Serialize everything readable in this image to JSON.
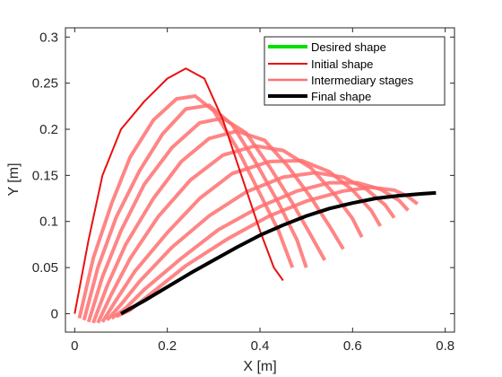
{
  "chart_data": {
    "type": "line",
    "xlabel": "X [m]",
    "ylabel": "Y [m]",
    "xlim": [
      -0.02,
      0.82
    ],
    "ylim": [
      -0.02,
      0.31
    ],
    "xticks": [
      0,
      0.2,
      0.4,
      0.6,
      0.8
    ],
    "xtick_labels": [
      "0",
      "0.2",
      "0.4",
      "0.6",
      "0.8"
    ],
    "yticks": [
      0,
      0.05,
      0.1,
      0.15,
      0.2,
      0.25,
      0.3
    ],
    "ytick_labels": [
      "0",
      "0.05",
      "0.1",
      "0.15",
      "0.2",
      "0.25",
      "0.3"
    ],
    "grid": false,
    "legend_position": "top-right",
    "legend": [
      "Desired shape",
      "Initial shape",
      "Intermediary stages",
      "Final shape"
    ],
    "colors": {
      "desired": "#00e000",
      "initial": "#e81010",
      "intermediate": "#ff7070",
      "final": "#000000",
      "axis": "#262626"
    },
    "series": [
      {
        "name": "Desired shape",
        "role": "desired",
        "x": [
          0.1,
          0.15,
          0.2,
          0.25,
          0.3,
          0.35,
          0.4,
          0.45,
          0.5,
          0.55,
          0.6,
          0.65,
          0.7,
          0.75,
          0.78
        ],
        "y": [
          0.0,
          0.014,
          0.029,
          0.044,
          0.058,
          0.072,
          0.085,
          0.096,
          0.106,
          0.114,
          0.12,
          0.125,
          0.128,
          0.13,
          0.131
        ]
      },
      {
        "name": "Initial shape",
        "role": "initial",
        "x": [
          0.0,
          0.03,
          0.06,
          0.1,
          0.15,
          0.2,
          0.24,
          0.28,
          0.32,
          0.36,
          0.4,
          0.43,
          0.45
        ],
        "y": [
          0.0,
          0.08,
          0.15,
          0.2,
          0.23,
          0.255,
          0.266,
          0.255,
          0.21,
          0.15,
          0.09,
          0.05,
          0.036
        ]
      },
      {
        "name": "Intermediary stages",
        "role": "intermediate",
        "x": [
          0.01,
          0.04,
          0.08,
          0.12,
          0.17,
          0.22,
          0.26,
          0.3,
          0.35,
          0.4,
          0.44,
          0.47
        ],
        "y": [
          -0.005,
          0.06,
          0.12,
          0.17,
          0.21,
          0.233,
          0.236,
          0.22,
          0.18,
          0.13,
          0.09,
          0.05
        ]
      },
      {
        "name": "Intermediary stages",
        "role": "intermediate",
        "x": [
          0.02,
          0.05,
          0.09,
          0.14,
          0.19,
          0.24,
          0.29,
          0.34,
          0.39,
          0.44,
          0.48,
          0.5
        ],
        "y": [
          -0.007,
          0.05,
          0.105,
          0.155,
          0.195,
          0.222,
          0.226,
          0.205,
          0.165,
          0.12,
          0.08,
          0.05
        ]
      },
      {
        "name": "Intermediary stages",
        "role": "intermediate",
        "x": [
          0.03,
          0.06,
          0.1,
          0.15,
          0.21,
          0.27,
          0.32,
          0.37,
          0.42,
          0.47,
          0.51,
          0.54
        ],
        "y": [
          -0.009,
          0.04,
          0.09,
          0.14,
          0.18,
          0.207,
          0.212,
          0.196,
          0.16,
          0.12,
          0.085,
          0.058
        ]
      },
      {
        "name": "Intermediary stages",
        "role": "intermediate",
        "x": [
          0.04,
          0.07,
          0.11,
          0.17,
          0.23,
          0.29,
          0.35,
          0.41,
          0.46,
          0.51,
          0.55,
          0.58
        ],
        "y": [
          -0.01,
          0.03,
          0.075,
          0.125,
          0.165,
          0.19,
          0.198,
          0.188,
          0.16,
          0.126,
          0.095,
          0.07
        ]
      },
      {
        "name": "Intermediary stages",
        "role": "intermediate",
        "x": [
          0.05,
          0.08,
          0.12,
          0.18,
          0.25,
          0.32,
          0.39,
          0.45,
          0.51,
          0.56,
          0.6,
          0.62
        ],
        "y": [
          -0.01,
          0.022,
          0.06,
          0.105,
          0.145,
          0.172,
          0.182,
          0.177,
          0.158,
          0.13,
          0.103,
          0.083
        ]
      },
      {
        "name": "Intermediary stages",
        "role": "intermediate",
        "x": [
          0.06,
          0.09,
          0.13,
          0.2,
          0.27,
          0.34,
          0.42,
          0.49,
          0.55,
          0.6,
          0.64,
          0.66
        ],
        "y": [
          -0.009,
          0.015,
          0.046,
          0.088,
          0.125,
          0.152,
          0.165,
          0.166,
          0.154,
          0.134,
          0.112,
          0.095
        ]
      },
      {
        "name": "Intermediary stages",
        "role": "intermediate",
        "x": [
          0.07,
          0.1,
          0.14,
          0.21,
          0.29,
          0.37,
          0.45,
          0.52,
          0.58,
          0.63,
          0.67,
          0.69
        ],
        "y": [
          -0.007,
          0.01,
          0.035,
          0.072,
          0.106,
          0.132,
          0.148,
          0.153,
          0.148,
          0.135,
          0.118,
          0.104
        ]
      },
      {
        "name": "Intermediary stages",
        "role": "intermediate",
        "x": [
          0.08,
          0.11,
          0.15,
          0.23,
          0.31,
          0.4,
          0.48,
          0.55,
          0.61,
          0.66,
          0.7,
          0.72
        ],
        "y": [
          -0.005,
          0.006,
          0.026,
          0.06,
          0.091,
          0.116,
          0.133,
          0.142,
          0.142,
          0.135,
          0.123,
          0.112
        ]
      },
      {
        "name": "Intermediary stages",
        "role": "intermediate",
        "x": [
          0.09,
          0.12,
          0.16,
          0.24,
          0.33,
          0.42,
          0.5,
          0.58,
          0.64,
          0.69,
          0.72,
          0.74
        ],
        "y": [
          -0.003,
          0.004,
          0.02,
          0.052,
          0.081,
          0.106,
          0.122,
          0.133,
          0.137,
          0.134,
          0.127,
          0.119
        ]
      },
      {
        "name": "Final shape",
        "role": "final",
        "x": [
          0.1,
          0.15,
          0.2,
          0.25,
          0.3,
          0.35,
          0.4,
          0.45,
          0.5,
          0.55,
          0.6,
          0.65,
          0.7,
          0.75,
          0.78
        ],
        "y": [
          0.0,
          0.014,
          0.029,
          0.044,
          0.058,
          0.072,
          0.085,
          0.096,
          0.106,
          0.114,
          0.12,
          0.125,
          0.128,
          0.13,
          0.131
        ]
      }
    ]
  }
}
